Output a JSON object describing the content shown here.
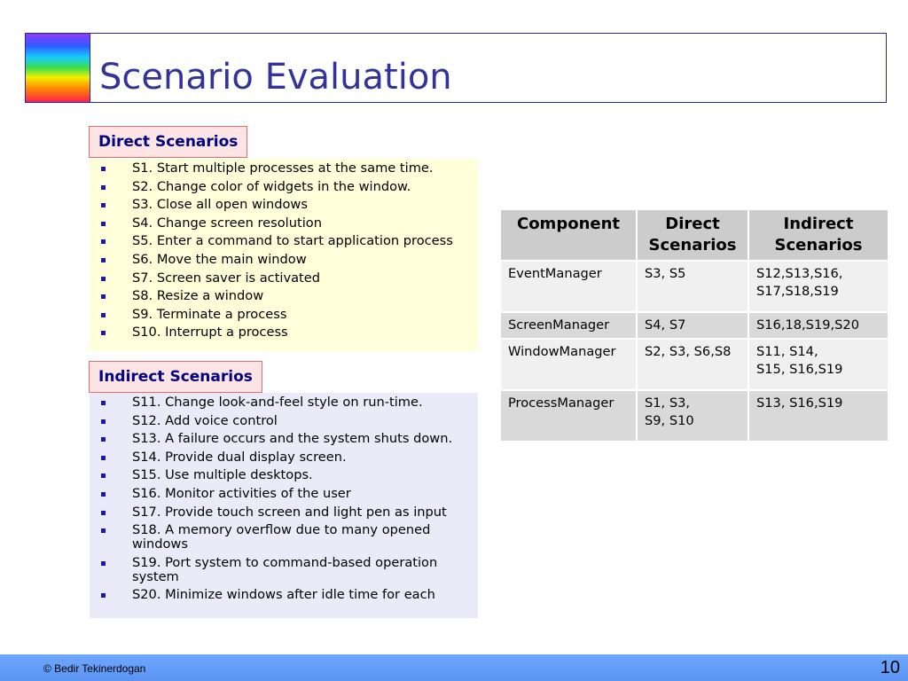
{
  "title": "Scenario Evaluation",
  "direct": {
    "label": "Direct Scenarios",
    "items": [
      "S1. Start multiple processes at the same time.",
      "S2. Change color of widgets in the window.",
      "S3. Close all open windows",
      "S4. Change screen resolution",
      "S5. Enter a command to start application process",
      "S6. Move the main window",
      "S7. Screen saver is activated",
      "S8. Resize a window",
      "S9. Terminate a process",
      "S10. Interrupt a process"
    ]
  },
  "indirect": {
    "label": "Indirect Scenarios",
    "items": [
      "S11. Change look-and-feel style on run-time.",
      "S12. Add voice control",
      "S13. A failure occurs and the system shuts down.",
      "S14. Provide dual display screen.",
      "S15. Use multiple desktops.",
      "S16. Monitor activities of the user",
      "S17. Provide touch screen and light pen as input",
      "S18. A memory overflow due to many opened windows",
      "S19. Port system to command-based operation system",
      "S20. Minimize windows after idle time for each"
    ]
  },
  "table": {
    "headers": [
      "Component",
      "Direct Scenarios",
      "Indirect Scenarios"
    ],
    "rows": [
      [
        "EventManager",
        "S3, S5",
        "S12,S13,S16,\nS17,S18,S19"
      ],
      [
        "ScreenManager",
        "S4, S7",
        "S16,18,S19,S20"
      ],
      [
        "WindowManager",
        "S2, S3, S6,S8",
        "S11, S14,\nS15, S16,S19"
      ],
      [
        "ProcessManager",
        "S1, S3,\nS9, S10",
        "S13, S16,S19"
      ]
    ]
  },
  "footer": {
    "copyright": "© Bedir Tekinerdogan",
    "page": "10"
  }
}
